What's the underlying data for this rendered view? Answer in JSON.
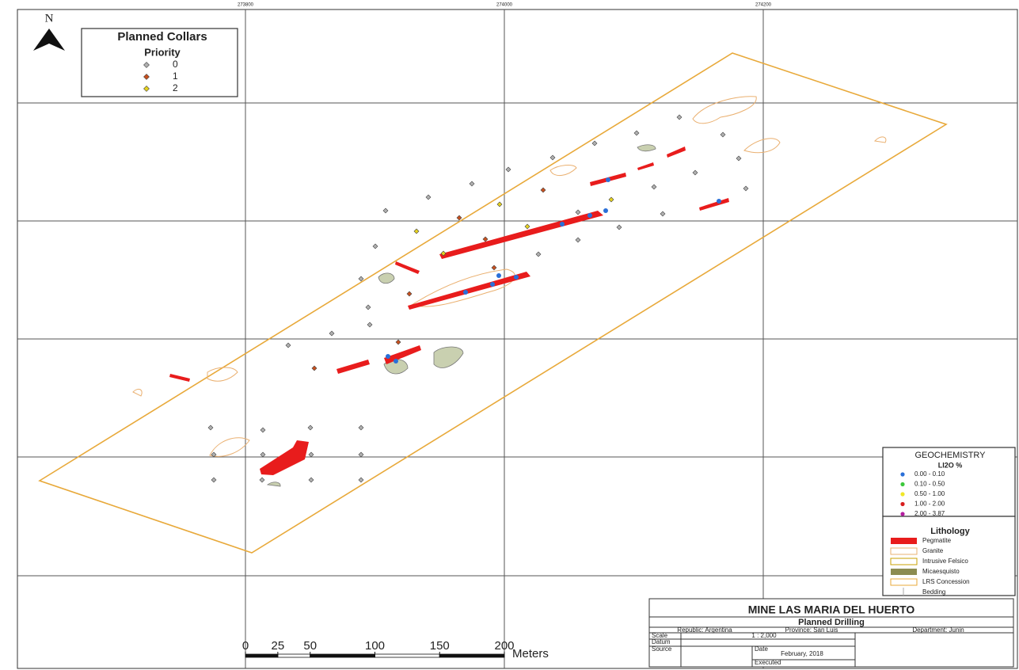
{
  "north_arrow": "N",
  "grid_labels": [
    273800,
    274000,
    274200
  ],
  "collars_legend": {
    "title": "Planned Collars",
    "subtitle": "Priority",
    "classes": [
      {
        "label": "0",
        "color": "#b0b0b0"
      },
      {
        "label": "1",
        "color": "#c8501e"
      },
      {
        "label": "2",
        "color": "#e6d21e"
      }
    ]
  },
  "geochemistry": {
    "title": "GEOCHEMISTRY",
    "subtitle": "LI2O %",
    "classes": [
      {
        "label": "0.00 - 0.10",
        "color": "#2a6fd8"
      },
      {
        "label": "0.10 - 0.50",
        "color": "#3cc83c"
      },
      {
        "label": "0.50 - 1.00",
        "color": "#f0e628"
      },
      {
        "label": "1.00 - 2.00",
        "color": "#d81e1e"
      },
      {
        "label": "2.00 - 3.87",
        "color": "#b41ea0"
      }
    ]
  },
  "lithology": {
    "title": "Lithology",
    "items": [
      "Pegmatite",
      "Granite",
      "Intrusive Felsico",
      "Micaesquisto",
      "LRS Concession",
      "Bedding"
    ]
  },
  "title_block": {
    "title": "MINE LAS MARIA DEL HUERTO",
    "subtitle": "Planned Drilling",
    "republic": "Republic: Argentina",
    "province": "Province: San Luis",
    "department": "Department: Junin",
    "scale_label": "Scale",
    "scale": "1 : 2,000",
    "datum_label": "Datum",
    "source_label": "Source",
    "date_label": "Date",
    "date": "February, 2018",
    "executed_label": "Executed"
  },
  "scale_bar": {
    "ticks": [
      0,
      25,
      50,
      100,
      150,
      200
    ],
    "unit": "Meters"
  }
}
